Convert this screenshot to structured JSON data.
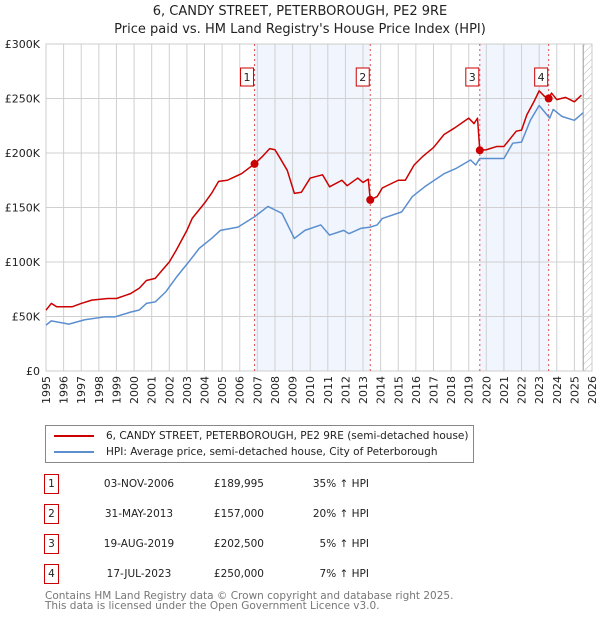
{
  "chart_data": {
    "type": "line",
    "title": "6, CANDY STREET, PETERBOROUGH, PE2 9RE",
    "subtitle": "Price paid vs. HM Land Registry's House Price Index (HPI)",
    "xlim": [
      1995,
      2026
    ],
    "ylim": [
      0,
      300000
    ],
    "x_ticks": [
      "1995",
      "1996",
      "1997",
      "1998",
      "1999",
      "2000",
      "2001",
      "2002",
      "2003",
      "2004",
      "2005",
      "2006",
      "2007",
      "2008",
      "2009",
      "2010",
      "2011",
      "2012",
      "2013",
      "2014",
      "2015",
      "2016",
      "2017",
      "2018",
      "2019",
      "2020",
      "2021",
      "2022",
      "2023",
      "2024",
      "2025",
      "2026"
    ],
    "y_ticks": [
      {
        "v": 0,
        "label": "£0"
      },
      {
        "v": 50000,
        "label": "£50K"
      },
      {
        "v": 100000,
        "label": "£100K"
      },
      {
        "v": 150000,
        "label": "£150K"
      },
      {
        "v": 200000,
        "label": "£200K"
      },
      {
        "v": 250000,
        "label": "£250K"
      },
      {
        "v": 300000,
        "label": "£300K"
      }
    ],
    "grid": true,
    "shaded_periods": [
      [
        2006.84,
        2013.41
      ],
      [
        2019.63,
        2023.54
      ]
    ],
    "forecast_hatch_from": 2025.5,
    "series": [
      {
        "name": "6, CANDY STREET, PETERBOROUGH, PE2 9RE (semi-detached house)",
        "color": "#cc0000",
        "points": [
          [
            1995.0,
            55800
          ],
          [
            1995.3,
            62000
          ],
          [
            1995.6,
            59000
          ],
          [
            1996.5,
            59000
          ],
          [
            1997.0,
            62000
          ],
          [
            1997.6,
            65000
          ],
          [
            1998.5,
            66500
          ],
          [
            1999.0,
            66500
          ],
          [
            1999.8,
            71000
          ],
          [
            2000.3,
            76000
          ],
          [
            2000.7,
            83000
          ],
          [
            2001.2,
            85000
          ],
          [
            2001.6,
            92500
          ],
          [
            2002.0,
            100000
          ],
          [
            2002.4,
            111000
          ],
          [
            2003.0,
            129000
          ],
          [
            2003.3,
            140000
          ],
          [
            2004.0,
            154000
          ],
          [
            2004.4,
            163000
          ],
          [
            2004.8,
            174000
          ],
          [
            2005.3,
            175000
          ],
          [
            2005.7,
            178000
          ],
          [
            2006.1,
            181000
          ],
          [
            2006.84,
            189995
          ],
          [
            2007.3,
            197000
          ],
          [
            2007.7,
            204000
          ],
          [
            2008.0,
            203000
          ],
          [
            2008.3,
            195000
          ],
          [
            2008.7,
            184000
          ],
          [
            2009.1,
            163000
          ],
          [
            2009.5,
            164000
          ],
          [
            2010.0,
            177000
          ],
          [
            2010.7,
            180000
          ],
          [
            2011.1,
            169000
          ],
          [
            2011.8,
            175000
          ],
          [
            2012.1,
            170000
          ],
          [
            2012.7,
            177000
          ],
          [
            2013.0,
            173000
          ],
          [
            2013.3,
            176000
          ],
          [
            2013.41,
            157000
          ],
          [
            2013.8,
            160000
          ],
          [
            2014.1,
            168000
          ],
          [
            2015.0,
            175000
          ],
          [
            2015.4,
            175000
          ],
          [
            2015.9,
            189000
          ],
          [
            2016.4,
            197000
          ],
          [
            2017.0,
            205000
          ],
          [
            2017.6,
            217000
          ],
          [
            2018.2,
            223000
          ],
          [
            2019.0,
            232000
          ],
          [
            2019.3,
            227000
          ],
          [
            2019.5,
            232000
          ],
          [
            2019.63,
            202500
          ],
          [
            2020.0,
            203000
          ],
          [
            2020.6,
            206000
          ],
          [
            2021.0,
            206000
          ],
          [
            2021.7,
            220000
          ],
          [
            2022.0,
            221000
          ],
          [
            2022.3,
            235000
          ],
          [
            2022.7,
            247000
          ],
          [
            2023.0,
            257000
          ],
          [
            2023.3,
            252000
          ],
          [
            2023.54,
            250000
          ],
          [
            2023.7,
            255000
          ],
          [
            2024.0,
            249000
          ],
          [
            2024.5,
            251000
          ],
          [
            2025.0,
            247000
          ],
          [
            2025.4,
            253000
          ]
        ]
      },
      {
        "name": "HPI: Average price, semi-detached house, City of Peterborough",
        "color": "#5b8fd0",
        "points": [
          [
            1995.0,
            42000
          ],
          [
            1995.3,
            46000
          ],
          [
            1996.3,
            43000
          ],
          [
            1997.2,
            47000
          ],
          [
            1998.3,
            49600
          ],
          [
            1998.9,
            49600
          ],
          [
            1999.8,
            54000
          ],
          [
            2000.3,
            56000
          ],
          [
            2000.7,
            62000
          ],
          [
            2001.2,
            63400
          ],
          [
            2001.8,
            72600
          ],
          [
            2002.4,
            86000
          ],
          [
            2003.1,
            100000
          ],
          [
            2003.7,
            112500
          ],
          [
            2004.4,
            121600
          ],
          [
            2004.9,
            129000
          ],
          [
            2005.9,
            132000
          ],
          [
            2006.84,
            141500
          ],
          [
            2007.6,
            151000
          ],
          [
            2008.4,
            144600
          ],
          [
            2009.1,
            121600
          ],
          [
            2009.7,
            129000
          ],
          [
            2010.6,
            134000
          ],
          [
            2011.1,
            124700
          ],
          [
            2011.9,
            129000
          ],
          [
            2012.2,
            126000
          ],
          [
            2012.9,
            131000
          ],
          [
            2013.41,
            132000
          ],
          [
            2013.8,
            134000
          ],
          [
            2014.1,
            140000
          ],
          [
            2015.2,
            146000
          ],
          [
            2015.8,
            160000
          ],
          [
            2016.5,
            169000
          ],
          [
            2017.6,
            181000
          ],
          [
            2018.3,
            186000
          ],
          [
            2019.1,
            193600
          ],
          [
            2019.4,
            189000
          ],
          [
            2019.63,
            195000
          ],
          [
            2020.4,
            195000
          ],
          [
            2021.0,
            195000
          ],
          [
            2021.5,
            209000
          ],
          [
            2022.0,
            210000
          ],
          [
            2022.5,
            230000
          ],
          [
            2023.0,
            243600
          ],
          [
            2023.6,
            232000
          ],
          [
            2023.8,
            240000
          ],
          [
            2024.3,
            233500
          ],
          [
            2025.0,
            230000
          ],
          [
            2025.5,
            237000
          ]
        ]
      }
    ],
    "sales": [
      {
        "label": "1",
        "x": 2006.84,
        "value": 189995,
        "date": "03-NOV-2006",
        "price": "£189,995",
        "hpi": "35% ↑ HPI"
      },
      {
        "label": "2",
        "x": 2013.41,
        "value": 157000,
        "date": "31-MAY-2013",
        "price": "£157,000",
        "hpi": "20% ↑ HPI"
      },
      {
        "label": "3",
        "x": 2019.63,
        "value": 202500,
        "date": "19-AUG-2019",
        "price": "£202,500",
        "hpi": "5% ↑ HPI"
      },
      {
        "label": "4",
        "x": 2023.54,
        "value": 250000,
        "date": "17-JUL-2023",
        "price": "£250,000",
        "hpi": "7% ↑ HPI"
      }
    ],
    "legend": [
      "6, CANDY STREET, PETERBOROUGH, PE2 9RE (semi-detached house)",
      "HPI: Average price, semi-detached house, City of Peterborough"
    ],
    "legend_placement": "bottom"
  },
  "footer": {
    "line1": "Contains HM Land Registry data © Crown copyright and database right 2025.",
    "line2": "This data is licensed under the Open Government Licence v3.0."
  }
}
